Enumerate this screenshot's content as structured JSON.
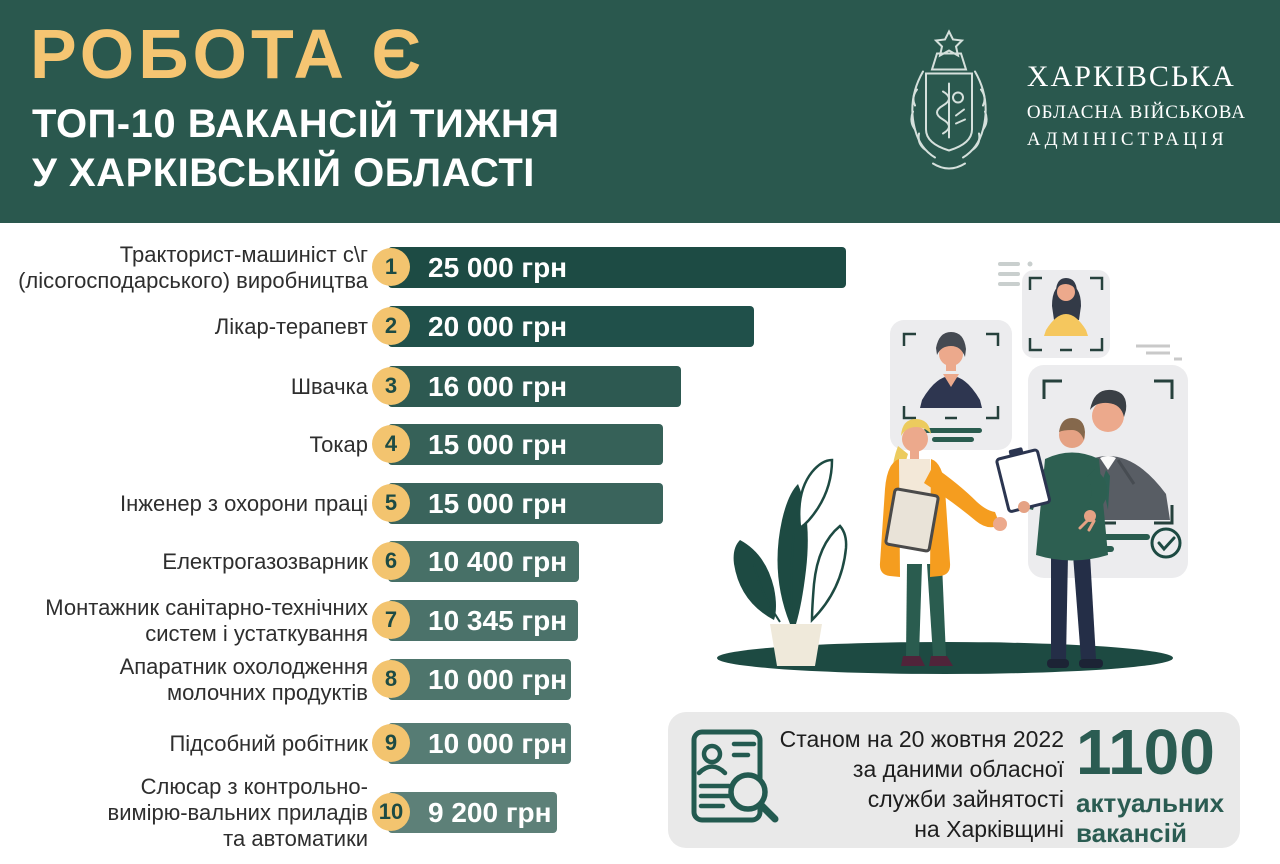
{
  "header": {
    "title": "РОБОТА Є",
    "subtitle_line1": "ТОП-10 ВАКАНСІЙ ТИЖНЯ",
    "subtitle_line2": "У ХАРКІВСЬКІЙ ОБЛАСТІ",
    "logo": {
      "org_line1": "ХАРКІВСЬКА",
      "org_line2": "ОБЛАСНА ВІЙСЬКОВА",
      "org_line3": "АДМІНІСТРАЦІЯ"
    },
    "colors": {
      "background": "#2a584e",
      "title": "#f5c572",
      "subtitle": "#ffffff"
    }
  },
  "chart_data": {
    "type": "bar",
    "title": "ТОП-10 ВАКАНСІЙ ТИЖНЯ У ХАРКІВСЬКІЙ ОБЛАСТІ",
    "unit": "грн",
    "orientation": "horizontal",
    "max_value": 25000,
    "categories": [
      "Тракторист-машиніст с\\г (лісогосподарського) виробництва",
      "Лікар-терапевт",
      "Швачка",
      "Токар",
      "Інженер з охорони праці",
      "Електрогазозварник",
      "Монтажник санітарно-технічних систем і устаткування",
      "Апаратник охолодження молочних продуктів",
      "Підсобний робітник",
      "Слюсар з контрольно-вимірю-вальних приладів та автоматики"
    ],
    "label_lines": [
      [
        "Тракторист-машиніст с\\г",
        "(лісогосподарського) виробництва"
      ],
      [
        "Лікар-терапевт"
      ],
      [
        "Швачка"
      ],
      [
        "Токар"
      ],
      [
        "Інженер з охорони праці"
      ],
      [
        "Електрогазозварник"
      ],
      [
        "Монтажник санітарно-технічних",
        "систем і устаткування"
      ],
      [
        "Апаратник охолодження",
        "молочних продуктів"
      ],
      [
        "Підсобний робітник"
      ],
      [
        "Слюсар з контрольно-",
        "вимірю-вальних приладів",
        "та автоматики"
      ]
    ],
    "values": [
      25000,
      20000,
      16000,
      15000,
      15000,
      10400,
      10345,
      10000,
      10000,
      9200
    ],
    "value_labels": [
      "25 000 грн",
      "20 000 грн",
      "16 000 грн",
      "15 000 грн",
      "15 000 грн",
      "10 400 грн",
      "10 345 грн",
      "10 000 грн",
      "10 000 грн",
      "9 200 грн"
    ],
    "rank_labels": [
      "1",
      "2",
      "3",
      "4",
      "5",
      "6",
      "7",
      "8",
      "9",
      "10"
    ],
    "rank_badge_color": "#f3c46f",
    "bar_colors": [
      "#1d4b44",
      "#20504a",
      "#2d5951",
      "#366158",
      "#3a645c",
      "#477067",
      "#4b726a",
      "#4e756c",
      "#567c74",
      "#5d8078"
    ],
    "legend": "none",
    "grid": false
  },
  "footer": {
    "note_line1": "Станом на 20 жовтня 2022",
    "note_line2": "за даними обласної",
    "note_line3": "служби зайнятості",
    "note_line4": "на Харківщині",
    "stat_value": "1100",
    "stat_label_line1": "актуальних",
    "stat_label_line2": "вакансій",
    "colors": {
      "panel": "#e9e9e9",
      "stat": "#2b5c52"
    }
  }
}
